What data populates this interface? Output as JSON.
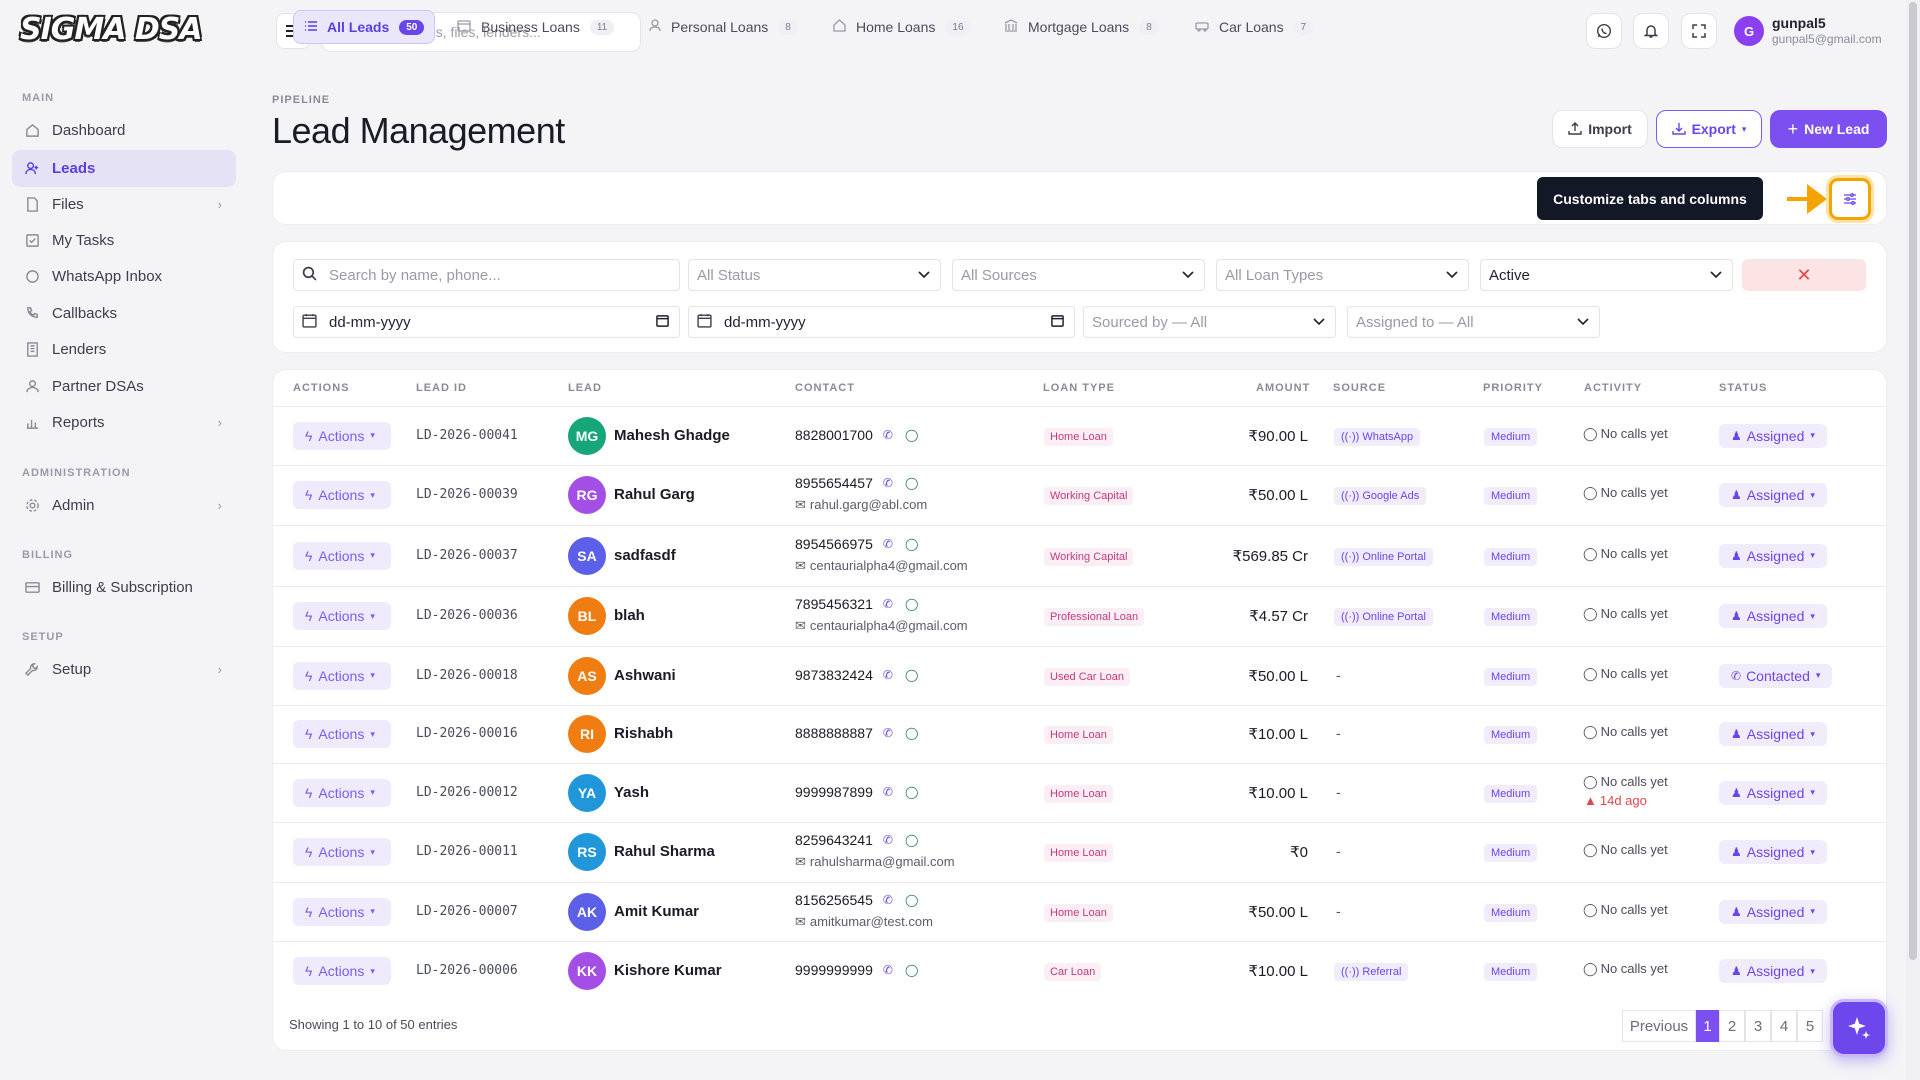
{
  "app": {
    "logo": "SIGMA DSA"
  },
  "sidebar": {
    "sections": [
      {
        "title": "MAIN"
      },
      {
        "title": "ADMINISTRATION"
      },
      {
        "title": "BILLING"
      },
      {
        "title": "SETUP"
      }
    ],
    "items": [
      {
        "label": "Dashboard",
        "icon": "home-icon"
      },
      {
        "label": "Leads",
        "icon": "user-plus-icon",
        "active": true
      },
      {
        "label": "Files",
        "icon": "file-icon"
      },
      {
        "label": "My Tasks",
        "icon": "checklist-icon"
      },
      {
        "label": "WhatsApp Inbox",
        "icon": "whatsapp-icon"
      },
      {
        "label": "Callbacks",
        "icon": "phone-icon"
      },
      {
        "label": "Lenders",
        "icon": "building-icon"
      },
      {
        "label": "Partner DSAs",
        "icon": "users-icon"
      },
      {
        "label": "Reports",
        "icon": "bar-chart-icon"
      },
      {
        "label": "Admin",
        "icon": "gear-icon"
      },
      {
        "label": "Billing & Subscription",
        "icon": "credit-card-icon"
      },
      {
        "label": "Setup",
        "icon": "wrench-icon"
      }
    ]
  },
  "topbar": {
    "search_placeholder": "Search leads, files, lenders...",
    "user": {
      "initial": "G",
      "name": "gunpal5",
      "email": "gunpal5@gmail.com"
    }
  },
  "header": {
    "breadcrumb": "PIPELINE",
    "title": "Lead Management",
    "import_label": "Import",
    "export_label": "Export",
    "new_label": "New Lead"
  },
  "tabs": [
    {
      "label": "All Leads",
      "count": "50",
      "icon": "list-icon",
      "active": true
    },
    {
      "label": "Business Loans",
      "count": "11",
      "icon": "card-icon"
    },
    {
      "label": "Personal Loans",
      "count": "8",
      "icon": "person-icon"
    },
    {
      "label": "Home Loans",
      "count": "16",
      "icon": "home-icon"
    },
    {
      "label": "Mortgage Loans",
      "count": "8",
      "icon": "bank-icon"
    },
    {
      "label": "Car Loans",
      "count": "7",
      "icon": "car-icon"
    }
  ],
  "tooltip": {
    "text": "Customize tabs and columns"
  },
  "filters": {
    "search_placeholder": "Search by name, phone...",
    "status": "All Status",
    "sources": "All Sources",
    "loan_types": "All Loan Types",
    "state": "Active",
    "date_from": "dd-mm-yyyy",
    "date_to": "dd-mm-yyyy",
    "sourced_by": "Sourced by — All",
    "assigned_to": "Assigned to — All"
  },
  "table": {
    "columns": [
      "ACTIONS",
      "LEAD ID",
      "LEAD",
      "CONTACT",
      "LOAN TYPE",
      "AMOUNT",
      "SOURCE",
      "PRIORITY",
      "ACTIVITY",
      "STATUS"
    ],
    "actions_label": "Actions",
    "rows": [
      {
        "id": "LD-2026-00041",
        "initials": "MG",
        "color": "#17a67a",
        "name": "Mahesh Ghadge",
        "phone": "8828001700",
        "email": "",
        "loan": "Home Loan",
        "amount": "₹90.00 L",
        "source": "WhatsApp",
        "priority": "Medium",
        "activity": "No calls yet",
        "overdue": "",
        "status": "Assigned"
      },
      {
        "id": "LD-2026-00039",
        "initials": "RG",
        "color": "#a34fe6",
        "name": "Rahul Garg",
        "phone": "8955654457",
        "email": "rahul.garg@abl.com",
        "loan": "Working Capital",
        "amount": "₹50.00 L",
        "source": "Google Ads",
        "priority": "Medium",
        "activity": "No calls yet",
        "overdue": "",
        "status": "Assigned"
      },
      {
        "id": "LD-2026-00037",
        "initials": "SA",
        "color": "#5c5fe8",
        "name": "sadfasdf",
        "phone": "8954566975",
        "email": "centaurialpha4@gmail.com",
        "loan": "Working Capital",
        "amount": "₹569.85 Cr",
        "source": "Online Portal",
        "priority": "Medium",
        "activity": "No calls yet",
        "overdue": "",
        "status": "Assigned"
      },
      {
        "id": "LD-2026-00036",
        "initials": "BL",
        "color": "#f07d12",
        "name": "blah",
        "phone": "7895456321",
        "email": "centaurialpha4@gmail.com",
        "loan": "Professional Loan",
        "amount": "₹4.57 Cr",
        "source": "Online Portal",
        "priority": "Medium",
        "activity": "No calls yet",
        "overdue": "",
        "status": "Assigned"
      },
      {
        "id": "LD-2026-00018",
        "initials": "AS",
        "color": "#f07d12",
        "name": "Ashwani",
        "phone": "9873832424",
        "email": "",
        "loan": "Used Car Loan",
        "amount": "₹50.00 L",
        "source": "",
        "priority": "Medium",
        "activity": "No calls yet",
        "overdue": "",
        "status": "Contacted"
      },
      {
        "id": "LD-2026-00016",
        "initials": "RI",
        "color": "#f07d12",
        "name": "Rishabh",
        "phone": "8888888887",
        "email": "",
        "loan": "Home Loan",
        "amount": "₹10.00 L",
        "source": "",
        "priority": "Medium",
        "activity": "No calls yet",
        "overdue": "",
        "status": "Assigned"
      },
      {
        "id": "LD-2026-00012",
        "initials": "YA",
        "color": "#2196d8",
        "name": "Yash",
        "phone": "9999987899",
        "email": "",
        "loan": "Home Loan",
        "amount": "₹10.00 L",
        "source": "",
        "priority": "Medium",
        "activity": "No calls yet",
        "overdue": "14d ago",
        "status": "Assigned"
      },
      {
        "id": "LD-2026-00011",
        "initials": "RS",
        "color": "#2196d8",
        "name": "Rahul Sharma",
        "phone": "8259643241",
        "email": "rahulsharma@gmail.com",
        "loan": "Home Loan",
        "amount": "₹0",
        "source": "",
        "priority": "Medium",
        "activity": "No calls yet",
        "overdue": "",
        "status": "Assigned"
      },
      {
        "id": "LD-2026-00007",
        "initials": "AK",
        "color": "#5c5fe8",
        "name": "Amit Kumar",
        "phone": "8156256545",
        "email": "amitkumar@test.com",
        "loan": "Home Loan",
        "amount": "₹50.00 L",
        "source": "",
        "priority": "Medium",
        "activity": "No calls yet",
        "overdue": "",
        "status": "Assigned"
      },
      {
        "id": "LD-2026-00006",
        "initials": "KK",
        "color": "#a34fe6",
        "name": "Kishore Kumar",
        "phone": "9999999999",
        "email": "",
        "loan": "Car Loan",
        "amount": "₹10.00 L",
        "source": "Referral",
        "priority": "Medium",
        "activity": "No calls yet",
        "overdue": "",
        "status": "Assigned"
      }
    ],
    "empty_source": "-"
  },
  "pagination": {
    "summary": "Showing 1 to 10 of 50 entries",
    "previous": "Previous",
    "pages": [
      "1",
      "2",
      "3",
      "4",
      "5"
    ],
    "current": "1"
  }
}
